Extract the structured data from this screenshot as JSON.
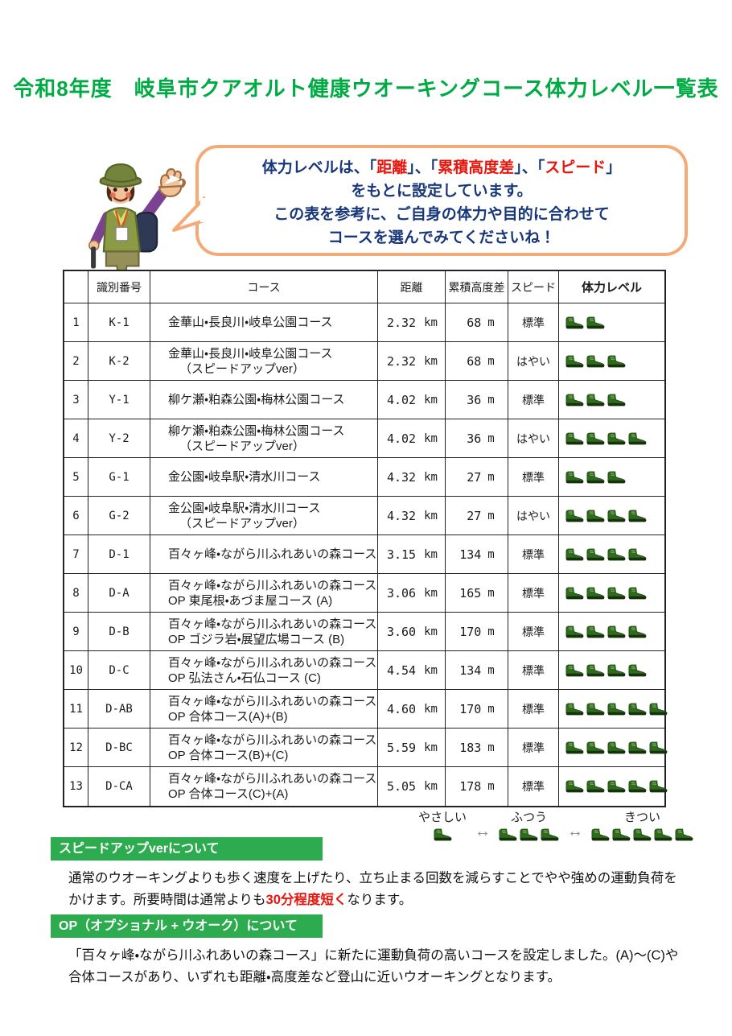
{
  "title": "令和8年度　岐阜市クアオルト健康ウオーキングコース体力レベル一覧表",
  "bubble": {
    "line1": [
      {
        "t": "体力レベルは、「",
        "red": false
      },
      {
        "t": "距離",
        "red": true
      },
      {
        "t": "」、「",
        "red": false
      },
      {
        "t": "累積高度差",
        "red": true
      },
      {
        "t": "」、「",
        "red": false
      },
      {
        "t": "スピード",
        "red": true
      },
      {
        "t": "」",
        "red": false
      }
    ],
    "line2": "をもとに設定しています。",
    "line3": "この表を参考に、ご自身の体力や目的に合わせて",
    "line4": "コースを選んでみてくださいね！"
  },
  "table": {
    "headers": {
      "no": "",
      "id": "識別番号",
      "course": "コース",
      "distance": "距離",
      "elevation": "累積高度差",
      "speed": "スピード",
      "level": "体力レベル"
    },
    "rows": [
      {
        "no": "1",
        "id": "K-1",
        "course1": "金華山・長良川・岐阜公園コース",
        "course2": "",
        "indent": false,
        "distance": "2.32",
        "distance_unit": "km",
        "elevation": "68",
        "elevation_unit": "m",
        "speed": "標準",
        "level": 2
      },
      {
        "no": "2",
        "id": "K-2",
        "course1": "金華山・長良川・岐阜公園コース",
        "course2": "（スピードアップver）",
        "indent": true,
        "distance": "2.32",
        "distance_unit": "km",
        "elevation": "68",
        "elevation_unit": "m",
        "speed": "はやい",
        "level": 3
      },
      {
        "no": "3",
        "id": "Y-1",
        "course1": "柳ケ瀬・粕森公園・梅林公園コース",
        "course2": "",
        "indent": false,
        "distance": "4.02",
        "distance_unit": "km",
        "elevation": "36",
        "elevation_unit": "m",
        "speed": "標準",
        "level": 3
      },
      {
        "no": "4",
        "id": "Y-2",
        "course1": "柳ケ瀬・粕森公園・梅林公園コース",
        "course2": "（スピードアップver）",
        "indent": true,
        "distance": "4.02",
        "distance_unit": "km",
        "elevation": "36",
        "elevation_unit": "m",
        "speed": "はやい",
        "level": 4
      },
      {
        "no": "5",
        "id": "G-1",
        "course1": "金公園・岐阜駅・清水川コース",
        "course2": "",
        "indent": false,
        "distance": "4.32",
        "distance_unit": "km",
        "elevation": "27",
        "elevation_unit": "m",
        "speed": "標準",
        "level": 3
      },
      {
        "no": "6",
        "id": "G-2",
        "course1": "金公園・岐阜駅・清水川コース",
        "course2": "（スピードアップver）",
        "indent": true,
        "distance": "4.32",
        "distance_unit": "km",
        "elevation": "27",
        "elevation_unit": "m",
        "speed": "はやい",
        "level": 4
      },
      {
        "no": "7",
        "id": "D-1",
        "course1": "百々ヶ峰・ながら川ふれあいの森コース",
        "course2": "",
        "indent": false,
        "distance": "3.15",
        "distance_unit": "km",
        "elevation": "134",
        "elevation_unit": "m",
        "speed": "標準",
        "level": 4
      },
      {
        "no": "8",
        "id": "D-A",
        "course1": "百々ヶ峰・ながら川ふれあいの森コース",
        "course2": "OP 東尾根・あづま屋コース (A)",
        "indent": false,
        "distance": "3.06",
        "distance_unit": "km",
        "elevation": "165",
        "elevation_unit": "m",
        "speed": "標準",
        "level": 4
      },
      {
        "no": "9",
        "id": "D-B",
        "course1": "百々ヶ峰・ながら川ふれあいの森コース",
        "course2": "OP ゴジラ岩・展望広場コース (B)",
        "indent": false,
        "distance": "3.60",
        "distance_unit": "km",
        "elevation": "170",
        "elevation_unit": "m",
        "speed": "標準",
        "level": 4
      },
      {
        "no": "10",
        "id": "D-C",
        "course1": "百々ヶ峰・ながら川ふれあいの森コース",
        "course2": "OP 弘法さん・石仏コース (C)",
        "indent": false,
        "distance": "4.54",
        "distance_unit": "km",
        "elevation": "134",
        "elevation_unit": "m",
        "speed": "標準",
        "level": 4
      },
      {
        "no": "11",
        "id": "D-AB",
        "course1": "百々ヶ峰・ながら川ふれあいの森コース",
        "course2": "OP 合体コース(A)+(B)",
        "indent": false,
        "distance": "4.60",
        "distance_unit": "km",
        "elevation": "170",
        "elevation_unit": "m",
        "speed": "標準",
        "level": 5
      },
      {
        "no": "12",
        "id": "D-BC",
        "course1": "百々ヶ峰・ながら川ふれあいの森コース",
        "course2": "OP 合体コース(B)+(C)",
        "indent": false,
        "distance": "5.59",
        "distance_unit": "km",
        "elevation": "183",
        "elevation_unit": "m",
        "speed": "標準",
        "level": 5
      },
      {
        "no": "13",
        "id": "D-CA",
        "course1": "百々ヶ峰・ながら川ふれあいの森コース",
        "course2": "OP 合体コース(C)+(A)",
        "indent": false,
        "distance": "5.05",
        "distance_unit": "km",
        "elevation": "178",
        "elevation_unit": "m",
        "speed": "標準",
        "level": 5
      }
    ]
  },
  "legend": {
    "easy_label": "やさしい",
    "easy_count": 1,
    "normal_label": "ふつう",
    "normal_count": 3,
    "hard_label": "きつい",
    "hard_count": 5,
    "arrow": "↔"
  },
  "sections": [
    {
      "heading": "スピードアップverについて",
      "body": [
        [
          {
            "t": "通常のウオーキングよりも歩く速度を上げたり、立ち止まる回数を減らすことでやや強めの運動負荷を",
            "red": false
          }
        ],
        [
          {
            "t": "かけます。所要時間は通常よりも",
            "red": false
          },
          {
            "t": "30分程度短く",
            "red": true
          },
          {
            "t": "なります。",
            "red": false
          }
        ]
      ]
    },
    {
      "heading": "OP（オプショナル + ウオーク）について",
      "body": [
        [
          {
            "t": "「百々ヶ峰・ながら川ふれあいの森コース」に新たに運動負荷の高いコースを設定しました。(A)～(C)や",
            "red": false
          }
        ],
        [
          {
            "t": "合体コースがあり、いずれも距離・高度差など登山に近いウオーキングとなります。",
            "red": false
          }
        ]
      ]
    }
  ],
  "colors": {
    "title_green": "#00ab44",
    "banner_green": "#2cab4f",
    "bubble_border": "#f3aa76",
    "bubble_text": "#17377a",
    "accent_red": "#e8150d",
    "boot_green": "#2e6b1d"
  },
  "icons": {
    "boot": "hiking-boot-icon",
    "arrow": "double-arrow-icon",
    "mascot": "hiker-character-illustration"
  }
}
